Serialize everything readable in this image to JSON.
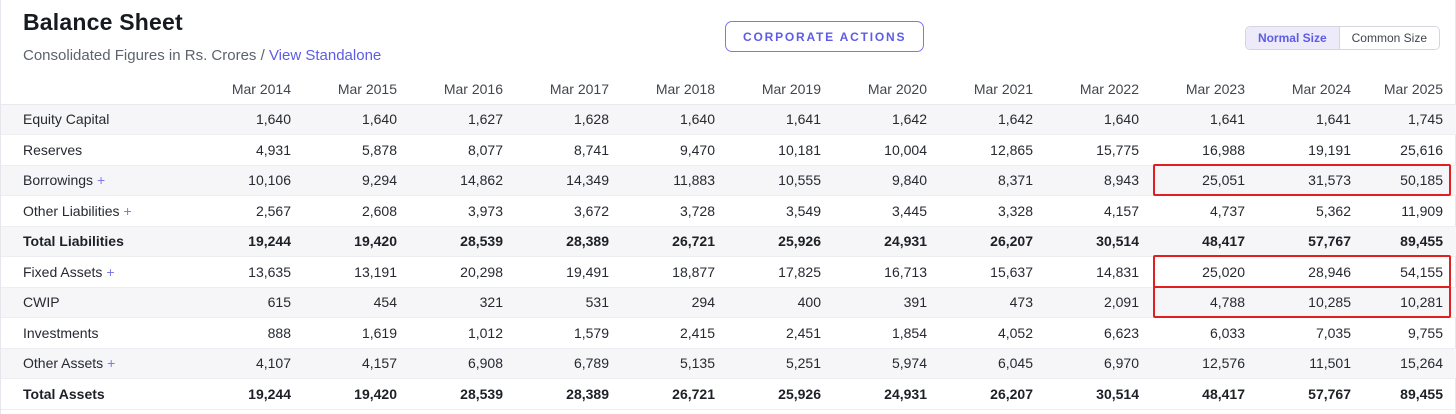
{
  "page": {
    "title": "Balance Sheet",
    "subtitle": "Consolidated Figures in Rs. Crores /",
    "standalone_link": "View Standalone",
    "corporate_actions_label": "CORPORATE ACTIONS",
    "size_toggle": {
      "normal": "Normal Size",
      "common": "Common Size",
      "selected": "Normal Size"
    }
  },
  "colors": {
    "accent": "#5e5ce6",
    "highlight_red": "#e02020",
    "stripe_bg": "#f6f6f9"
  },
  "table": {
    "columns": [
      "Mar 2014",
      "Mar 2015",
      "Mar 2016",
      "Mar 2017",
      "Mar 2018",
      "Mar 2019",
      "Mar 2020",
      "Mar 2021",
      "Mar 2022",
      "Mar 2023",
      "Mar 2024",
      "Mar 2025"
    ],
    "highlight_columns": [
      "Mar 2023",
      "Mar 2024",
      "Mar 2025"
    ],
    "rows": [
      {
        "label": "Equity Capital",
        "expandable": false,
        "bold": false,
        "highlighted": false,
        "values": [
          "1,640",
          "1,640",
          "1,627",
          "1,628",
          "1,640",
          "1,641",
          "1,642",
          "1,642",
          "1,640",
          "1,641",
          "1,641",
          "1,745"
        ]
      },
      {
        "label": "Reserves",
        "expandable": false,
        "bold": false,
        "highlighted": false,
        "values": [
          "4,931",
          "5,878",
          "8,077",
          "8,741",
          "9,470",
          "10,181",
          "10,004",
          "12,865",
          "15,775",
          "16,988",
          "19,191",
          "25,616"
        ]
      },
      {
        "label": "Borrowings",
        "expandable": true,
        "bold": false,
        "highlighted": true,
        "values": [
          "10,106",
          "9,294",
          "14,862",
          "14,349",
          "11,883",
          "10,555",
          "9,840",
          "8,371",
          "8,943",
          "25,051",
          "31,573",
          "50,185"
        ]
      },
      {
        "label": "Other Liabilities",
        "expandable": true,
        "bold": false,
        "highlighted": false,
        "values": [
          "2,567",
          "2,608",
          "3,973",
          "3,672",
          "3,728",
          "3,549",
          "3,445",
          "3,328",
          "4,157",
          "4,737",
          "5,362",
          "11,909"
        ]
      },
      {
        "label": "Total Liabilities",
        "expandable": false,
        "bold": true,
        "highlighted": false,
        "values": [
          "19,244",
          "19,420",
          "28,539",
          "28,389",
          "26,721",
          "25,926",
          "24,931",
          "26,207",
          "30,514",
          "48,417",
          "57,767",
          "89,455"
        ]
      },
      {
        "label": "Fixed Assets",
        "expandable": true,
        "bold": false,
        "highlighted": true,
        "values": [
          "13,635",
          "13,191",
          "20,298",
          "19,491",
          "18,877",
          "17,825",
          "16,713",
          "15,637",
          "14,831",
          "25,020",
          "28,946",
          "54,155"
        ]
      },
      {
        "label": "CWIP",
        "expandable": false,
        "bold": false,
        "highlighted": true,
        "values": [
          "615",
          "454",
          "321",
          "531",
          "294",
          "400",
          "391",
          "473",
          "2,091",
          "4,788",
          "10,285",
          "10,281"
        ]
      },
      {
        "label": "Investments",
        "expandable": false,
        "bold": false,
        "highlighted": false,
        "values": [
          "888",
          "1,619",
          "1,012",
          "1,579",
          "2,415",
          "2,451",
          "1,854",
          "4,052",
          "6,623",
          "6,033",
          "7,035",
          "9,755"
        ]
      },
      {
        "label": "Other Assets",
        "expandable": true,
        "bold": false,
        "highlighted": false,
        "values": [
          "4,107",
          "4,157",
          "6,908",
          "6,789",
          "5,135",
          "5,251",
          "5,974",
          "6,045",
          "6,970",
          "12,576",
          "11,501",
          "15,264"
        ]
      },
      {
        "label": "Total Assets",
        "expandable": false,
        "bold": true,
        "highlighted": false,
        "values": [
          "19,244",
          "19,420",
          "28,539",
          "28,389",
          "26,721",
          "25,926",
          "24,931",
          "26,207",
          "30,514",
          "48,417",
          "57,767",
          "89,455"
        ]
      }
    ]
  }
}
